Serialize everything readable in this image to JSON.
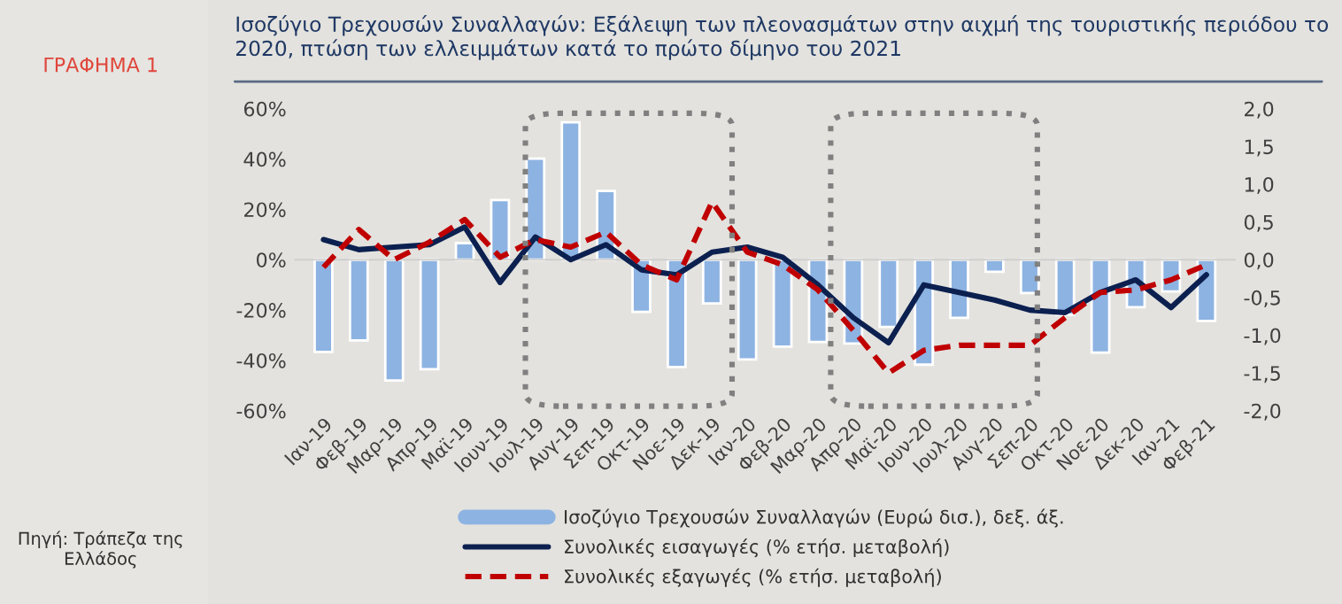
{
  "chart_data": {
    "type": "bar",
    "title": "Ισοζύγιο Τρεχουσών Συναλλαγών: Εξάλειψη των πλεονασμάτων στην αιχμή της τουριστικής περιόδου το 2020, πτώση των ελλειμμάτων κατά το πρώτο δίμηνο του 2021",
    "annotations": [
      "ΓΡΑΦΗΜΑ 1",
      "Πηγή: Τράπεζα της Ελλάδος"
    ],
    "categories": [
      "Ιαν-19",
      "Φεβ-19",
      "Μαρ-19",
      "Απρ-19",
      "Μαϊ-19",
      "Ιουν-19",
      "Ιουλ-19",
      "Αυγ-19",
      "Σεπ-19",
      "Οκτ-19",
      "Νοε-19",
      "Δεκ-19",
      "Ιαν-20",
      "Φεβ-20",
      "Μαρ-20",
      "Απρ-20",
      "Μαϊ-20",
      "Ιουν-20",
      "Ιουλ-20",
      "Αυγ-20",
      "Σεπ-20",
      "Οκτ-20",
      "Νοε-20",
      "Δεκ-20",
      "Ιαν-21",
      "Φεβ-21"
    ],
    "series": [
      {
        "name": "Ισοζύγιο Τρεχουσών Συναλλαγών (Ευρώ δισ.), δεξ. άξ.",
        "axis": "y2",
        "color": "#8db3e2",
        "values": [
          -1.22,
          -1.07,
          -1.6,
          -1.45,
          0.22,
          0.79,
          1.34,
          1.82,
          0.91,
          -0.69,
          -1.42,
          -0.58,
          -1.32,
          -1.15,
          -1.09,
          -1.11,
          -0.89,
          -1.39,
          -0.77,
          -0.16,
          -0.44,
          -0.73,
          -1.23,
          -0.63,
          -0.42,
          -0.81
        ]
      },
      {
        "name": "Συνολικές εισαγωγές (% ετήσ. μεταβολή)",
        "type": "line",
        "line_style": "solid",
        "color": "#0c2050",
        "values": [
          8,
          4,
          5,
          6,
          13,
          -9,
          9,
          0,
          6,
          -4,
          -6,
          3,
          5,
          1,
          -10,
          -23,
          -33,
          -10,
          -13,
          -16,
          -20,
          -21,
          -13,
          -8,
          -19,
          -6
        ]
      },
      {
        "name": "Συνολικές εξαγωγές (% ετήσ. μεταβολή)",
        "type": "line",
        "line_style": "dashed",
        "color": "#c00000",
        "values": [
          -3,
          12,
          0,
          7,
          16,
          1,
          8,
          5,
          11,
          -2,
          -8,
          23,
          3,
          -2,
          -12,
          -28,
          -45,
          -36,
          -34,
          -34,
          -34,
          -23,
          -13,
          -12,
          -8,
          -2
        ]
      }
    ],
    "ylim": [
      -60,
      60
    ],
    "yticks": [
      {
        "value": -60,
        "label": "-60%"
      },
      {
        "value": -40,
        "label": "-40%"
      },
      {
        "value": -20,
        "label": "-20%"
      },
      {
        "value": 0,
        "label": "0%"
      },
      {
        "value": 20,
        "label": "20%"
      },
      {
        "value": 40,
        "label": "40%"
      },
      {
        "value": 60,
        "label": "60%"
      }
    ],
    "y2lim": [
      -2,
      2
    ],
    "y2ticks": [
      {
        "value": -2,
        "label": "-2,0"
      },
      {
        "value": -1.5,
        "label": "-1,5"
      },
      {
        "value": -1,
        "label": "-1,0"
      },
      {
        "value": -0.5,
        "label": "-0,5"
      },
      {
        "value": 0,
        "label": "0,0"
      },
      {
        "value": 0.5,
        "label": "0,5"
      },
      {
        "value": 1,
        "label": "1,0"
      },
      {
        "value": 1.5,
        "label": "1,5"
      },
      {
        "value": 2,
        "label": "2,0"
      }
    ],
    "legend": "bottom",
    "marker": "none"
  }
}
